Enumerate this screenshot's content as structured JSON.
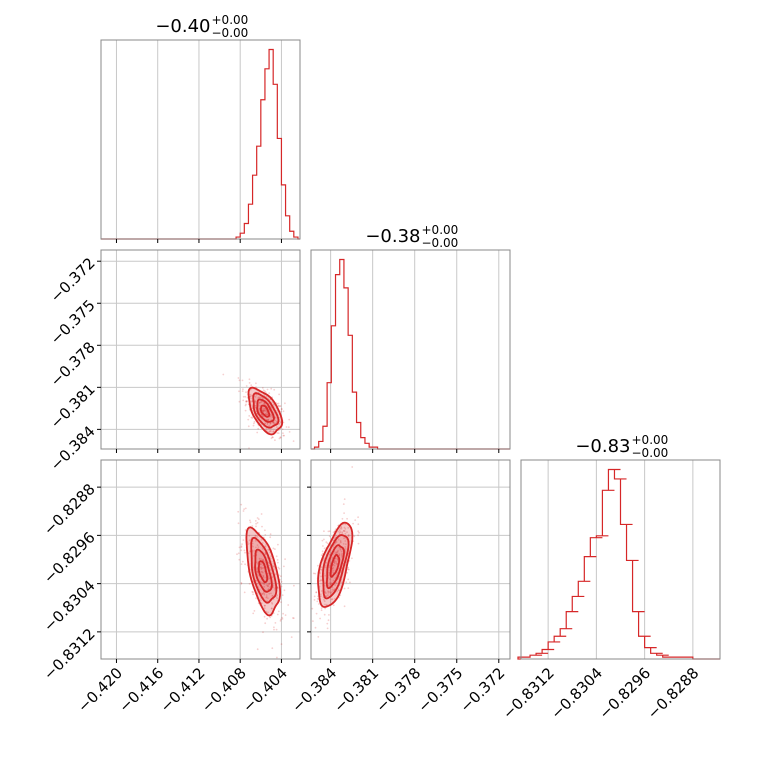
{
  "chart_data": {
    "type": "corner",
    "color": "#d62728",
    "parameters": [
      {
        "title_value": "−0.40",
        "title_plus": "+0.00",
        "title_minus": "−0.00",
        "range": [
          -0.4215,
          -0.4022
        ],
        "ticks": [
          -0.42,
          -0.416,
          -0.412,
          -0.408,
          -0.404
        ],
        "tick_labels": [
          "−0.420",
          "−0.416",
          "−0.412",
          "−0.408",
          "−0.404"
        ],
        "hist": {
          "x": [
            -0.4082,
            -0.4078,
            -0.4074,
            -0.407,
            -0.4066,
            -0.4062,
            -0.4058,
            -0.4054,
            -0.405,
            -0.4046,
            -0.4042,
            -0.4038,
            -0.4034,
            -0.403,
            -0.4026
          ],
          "y": [
            1,
            3,
            8,
            18,
            33,
            48,
            72,
            88,
            98,
            80,
            52,
            28,
            12,
            4,
            1
          ]
        }
      },
      {
        "title_value": "−0.38",
        "title_plus": "+0.00",
        "title_minus": "−0.00",
        "range": [
          -0.3854,
          -0.3712
        ],
        "ticks": [
          -0.384,
          -0.381,
          -0.378,
          -0.375,
          -0.372
        ],
        "tick_labels": [
          "−0.384",
          "−0.381",
          "−0.378",
          "−0.375",
          "−0.372"
        ],
        "hist": {
          "x": [
            -0.385,
            -0.3847,
            -0.3844,
            -0.3841,
            -0.3838,
            -0.3835,
            -0.3832,
            -0.3829,
            -0.3826,
            -0.3823,
            -0.382,
            -0.3817,
            -0.3814,
            -0.3811,
            -0.3808
          ],
          "y": [
            1,
            4,
            12,
            35,
            65,
            92,
            100,
            85,
            60,
            30,
            14,
            6,
            3,
            1,
            1
          ]
        }
      },
      {
        "title_value": "−0.83",
        "title_plus": "+0.00",
        "title_minus": "−0.00",
        "range": [
          -0.83165,
          -0.82835
        ],
        "ticks": [
          -0.8312,
          -0.8304,
          -0.8296,
          -0.8288
        ],
        "tick_labels": [
          "−0.8312",
          "−0.8304",
          "−0.8296",
          "−0.8288"
        ],
        "hist": {
          "x": [
            -0.8316,
            -0.8314,
            -0.8313,
            -0.8312,
            -0.8311,
            -0.831,
            -0.8309,
            -0.8308,
            -0.8307,
            -0.8306,
            -0.8305,
            -0.8304,
            -0.8303,
            -0.8302,
            -0.8301,
            -0.83,
            -0.8299,
            -0.8298,
            -0.8297,
            -0.8296,
            -0.8295,
            -0.8294,
            -0.8293,
            -0.8292,
            -0.8289
          ],
          "y": [
            1,
            2,
            3,
            5,
            9,
            12,
            16,
            25,
            33,
            41,
            54,
            64,
            65,
            89,
            100,
            95,
            71,
            52,
            25,
            12,
            6,
            3,
            2,
            1,
            1
          ]
        }
      }
    ],
    "pairs": [
      {
        "row": 1,
        "col": 0,
        "center": [
          -0.4056,
          -0.3827
        ],
        "sigma": [
          0.0008,
          0.0008
        ],
        "rho": -0.55
      },
      {
        "row": 2,
        "col": 0,
        "center": [
          -0.4058,
          -0.8302
        ],
        "sigma": [
          0.0008,
          0.00035
        ],
        "rho": -0.55
      },
      {
        "row": 2,
        "col": 1,
        "center": [
          -0.3837,
          -0.8301
        ],
        "sigma": [
          0.0006,
          0.00035
        ],
        "rho": 0.6
      }
    ],
    "contour_levels_sigma": [
      0.5,
      1.0,
      1.5,
      2.0
    ],
    "grid": true
  }
}
